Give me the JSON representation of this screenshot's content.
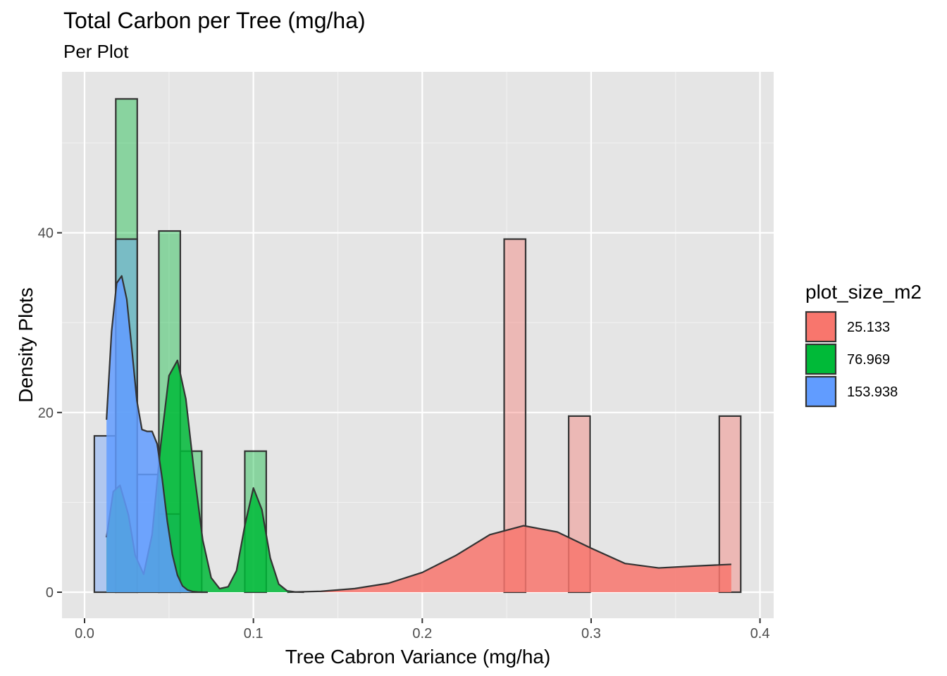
{
  "chart_data": {
    "type": "histogram_density",
    "title": "Total Carbon per Tree (mg/ha)",
    "subtitle": "Per Plot",
    "xlabel": "Tree Cabron Variance (mg/ha)",
    "ylabel": "Density Plots",
    "xlim": [
      -0.013,
      0.408
    ],
    "ylim": [
      -2.6,
      57.8
    ],
    "x_ticks": [
      0.0,
      0.1,
      0.2,
      0.3,
      0.4
    ],
    "x_tick_labels": [
      "0.0",
      "0.1",
      "0.2",
      "0.3",
      "0.4"
    ],
    "y_ticks": [
      0,
      20,
      40
    ],
    "y_tick_labels": [
      "0",
      "20",
      "40"
    ],
    "x_minor_ticks": [
      0.05,
      0.15,
      0.25,
      0.35
    ],
    "y_minor_ticks": [
      10,
      30,
      50
    ],
    "grid": true,
    "panel_background": "#e5e5e5",
    "legend": {
      "title": "plot_size_m2",
      "position": "right",
      "entries": [
        {
          "label": "25.133",
          "color": "#F8766D"
        },
        {
          "label": "76.969",
          "color": "#00BA38"
        },
        {
          "label": "153.938",
          "color": "#619CFF"
        }
      ]
    },
    "series": [
      {
        "name": "25.133",
        "color": "#F8766D",
        "bins": [
          {
            "x0": 0.2485,
            "x1": 0.2612,
            "count": 39.3
          },
          {
            "x0": 0.2867,
            "x1": 0.2994,
            "count": 19.6
          },
          {
            "x0": 0.3759,
            "x1": 0.3886,
            "count": 19.6
          }
        ],
        "density": {
          "x": [
            0.12,
            0.14,
            0.16,
            0.18,
            0.2,
            0.22,
            0.24,
            0.26,
            0.28,
            0.3,
            0.32,
            0.34,
            0.36,
            0.383
          ],
          "y": [
            0.0,
            0.1,
            0.4,
            1.0,
            2.2,
            4.1,
            6.4,
            7.4,
            6.7,
            4.9,
            3.2,
            2.7,
            2.9,
            3.1
          ]
        }
      },
      {
        "name": "76.969",
        "color": "#00BA38",
        "bins": [
          {
            "x0": 0.0185,
            "x1": 0.0312,
            "count": 54.9
          },
          {
            "x0": 0.044,
            "x1": 0.0567,
            "count": 40.2
          },
          {
            "x0": 0.0567,
            "x1": 0.0694,
            "count": 15.7
          },
          {
            "x0": 0.0949,
            "x1": 0.1076,
            "count": 15.7
          }
        ],
        "density": {
          "x": [
            0.013,
            0.017,
            0.021,
            0.026,
            0.03,
            0.035,
            0.04,
            0.045,
            0.05,
            0.055,
            0.06,
            0.065,
            0.07,
            0.075,
            0.08,
            0.085,
            0.09,
            0.095,
            0.1,
            0.105,
            0.11,
            0.115,
            0.12,
            0.125,
            0.13
          ],
          "y": [
            6.1,
            11.2,
            11.9,
            8.6,
            4.1,
            2.0,
            6.4,
            16.2,
            24.1,
            25.8,
            21.5,
            13.2,
            5.8,
            1.6,
            0.4,
            0.6,
            2.4,
            7.5,
            11.6,
            9.2,
            3.8,
            0.9,
            0.15,
            0.02,
            0.0
          ]
        }
      },
      {
        "name": "153.938",
        "color": "#619CFF",
        "bins": [
          {
            "x0": 0.0058,
            "x1": 0.0185,
            "count": 17.4
          },
          {
            "x0": 0.0185,
            "x1": 0.0312,
            "count": 39.3
          },
          {
            "x0": 0.0312,
            "x1": 0.044,
            "count": 13.1
          },
          {
            "x0": 0.044,
            "x1": 0.0567,
            "count": 8.7
          }
        ],
        "density": {
          "x": [
            0.013,
            0.016,
            0.019,
            0.022,
            0.025,
            0.028,
            0.031,
            0.034,
            0.037,
            0.04,
            0.043,
            0.046,
            0.049,
            0.052,
            0.055,
            0.058,
            0.061,
            0.064,
            0.067,
            0.07,
            0.073
          ],
          "y": [
            19.2,
            29.0,
            34.4,
            35.2,
            32.6,
            27.1,
            21.3,
            18.1,
            17.9,
            17.9,
            16.5,
            12.6,
            7.9,
            4.2,
            1.9,
            0.7,
            0.25,
            0.07,
            0.02,
            0.0,
            0.0
          ]
        }
      }
    ]
  }
}
